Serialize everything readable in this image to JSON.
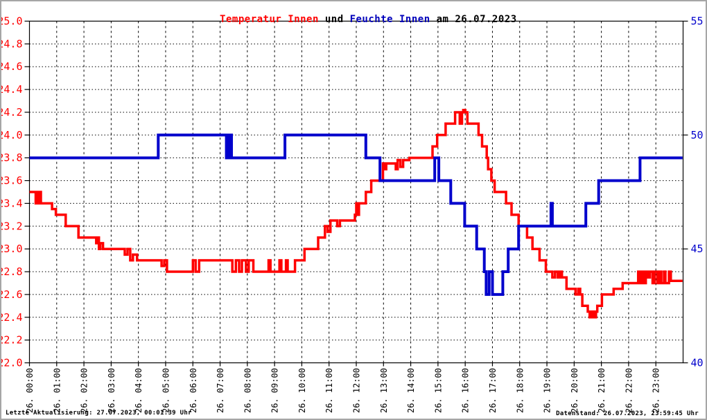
{
  "title": {
    "temperature": "Temperatur Innen",
    "conjunction": " und ",
    "humidity": "Feuchte Innen",
    "date_suffix": " am 26.07.2023"
  },
  "footer": {
    "left": "Letzte Aktualisierung: 27.07.2023, 00:01:39 Uhr",
    "right": "Datenstand: 26.07.2023, 23:59:45 Uhr"
  },
  "colors": {
    "temperature": "#ff0000",
    "humidity": "#0000cc",
    "grid": "#000000",
    "frame": "#a6a6a6"
  },
  "chart_data": {
    "type": "line",
    "title": "Temperatur Innen und Feuchte Innen am 26.07.2023",
    "date": "26.07.2023",
    "grid": true,
    "legend_position": "none",
    "x_axis": {
      "range_hours": [
        0,
        24
      ],
      "tick_labels": [
        "26. 00:00",
        "26. 01:00",
        "26. 02:00",
        "26. 03:00",
        "26. 04:00",
        "26. 05:00",
        "26. 06:00",
        "26. 07:00",
        "26. 08:00",
        "26. 09:00",
        "26. 10:00",
        "26. 11:00",
        "26. 12:00",
        "26. 13:00",
        "26. 14:00",
        "26. 15:00",
        "26. 16:00",
        "26. 17:00",
        "26. 18:00",
        "26. 19:00",
        "26. 20:00",
        "26. 21:00",
        "26. 22:00",
        "26. 23:00"
      ]
    },
    "y_left": {
      "name": "Temperatur Innen",
      "color": "#ff0000",
      "range": [
        22.0,
        25.0
      ],
      "tick_step": 0.2,
      "tick_labels": [
        "25.0",
        "24.8",
        "24.6",
        "24.4",
        "24.2",
        "24.0",
        "23.8",
        "23.6",
        "23.4",
        "23.2",
        "23.0",
        "22.8",
        "22.6",
        "22.4",
        "22.2",
        "22.0"
      ]
    },
    "y_right": {
      "name": "Feuchte Innen",
      "color": "#0000cc",
      "range": [
        40,
        55
      ],
      "tick_step": 5,
      "tick_labels": [
        "55",
        "50",
        "45",
        "40"
      ]
    },
    "series": [
      {
        "name": "Temperatur Innen",
        "axis": "left",
        "color": "#ff0000",
        "interpolation": "step-after",
        "points": [
          [
            0.0,
            23.5
          ],
          [
            0.23,
            23.4
          ],
          [
            0.27,
            23.5
          ],
          [
            0.32,
            23.4
          ],
          [
            0.36,
            23.5
          ],
          [
            0.42,
            23.4
          ],
          [
            0.83,
            23.35
          ],
          [
            0.97,
            23.3
          ],
          [
            1.33,
            23.2
          ],
          [
            1.8,
            23.1
          ],
          [
            2.45,
            23.05
          ],
          [
            2.5,
            23.1
          ],
          [
            2.55,
            23.0
          ],
          [
            2.6,
            23.05
          ],
          [
            2.7,
            23.0
          ],
          [
            3.5,
            22.95
          ],
          [
            3.6,
            23.0
          ],
          [
            3.7,
            22.9
          ],
          [
            3.8,
            22.95
          ],
          [
            3.95,
            22.9
          ],
          [
            4.85,
            22.85
          ],
          [
            4.95,
            22.9
          ],
          [
            5.05,
            22.8
          ],
          [
            6.0,
            22.9
          ],
          [
            6.1,
            22.8
          ],
          [
            6.23,
            22.9
          ],
          [
            7.45,
            22.8
          ],
          [
            7.58,
            22.9
          ],
          [
            7.7,
            22.8
          ],
          [
            7.8,
            22.9
          ],
          [
            7.95,
            22.8
          ],
          [
            8.05,
            22.9
          ],
          [
            8.22,
            22.8
          ],
          [
            8.78,
            22.9
          ],
          [
            8.85,
            22.8
          ],
          [
            9.18,
            22.9
          ],
          [
            9.25,
            22.8
          ],
          [
            9.42,
            22.9
          ],
          [
            9.48,
            22.8
          ],
          [
            9.75,
            22.9
          ],
          [
            10.1,
            23.0
          ],
          [
            10.6,
            23.1
          ],
          [
            10.85,
            23.2
          ],
          [
            10.95,
            23.15
          ],
          [
            11.05,
            23.25
          ],
          [
            11.3,
            23.2
          ],
          [
            11.4,
            23.25
          ],
          [
            11.95,
            23.3
          ],
          [
            12.0,
            23.4
          ],
          [
            12.05,
            23.3
          ],
          [
            12.1,
            23.4
          ],
          [
            12.35,
            23.5
          ],
          [
            12.55,
            23.6
          ],
          [
            12.98,
            23.75
          ],
          [
            13.05,
            23.7
          ],
          [
            13.1,
            23.75
          ],
          [
            13.45,
            23.7
          ],
          [
            13.52,
            23.78
          ],
          [
            13.62,
            23.72
          ],
          [
            13.72,
            23.78
          ],
          [
            13.95,
            23.8
          ],
          [
            14.8,
            23.9
          ],
          [
            14.97,
            24.0
          ],
          [
            15.28,
            24.1
          ],
          [
            15.63,
            24.2
          ],
          [
            15.8,
            24.1
          ],
          [
            15.88,
            24.2
          ],
          [
            15.93,
            24.22
          ],
          [
            16.0,
            24.2
          ],
          [
            16.08,
            24.1
          ],
          [
            16.49,
            24.0
          ],
          [
            16.62,
            23.9
          ],
          [
            16.79,
            23.8
          ],
          [
            16.84,
            23.7
          ],
          [
            16.96,
            23.6
          ],
          [
            17.08,
            23.5
          ],
          [
            17.5,
            23.4
          ],
          [
            17.7,
            23.3
          ],
          [
            17.96,
            23.2
          ],
          [
            18.27,
            23.1
          ],
          [
            18.47,
            23.0
          ],
          [
            18.73,
            22.9
          ],
          [
            18.96,
            22.8
          ],
          [
            19.2,
            22.75
          ],
          [
            19.3,
            22.8
          ],
          [
            19.4,
            22.75
          ],
          [
            19.47,
            22.8
          ],
          [
            19.55,
            22.75
          ],
          [
            19.72,
            22.65
          ],
          [
            20.05,
            22.6
          ],
          [
            20.15,
            22.65
          ],
          [
            20.22,
            22.6
          ],
          [
            20.3,
            22.5
          ],
          [
            20.5,
            22.45
          ],
          [
            20.57,
            22.4
          ],
          [
            20.65,
            22.45
          ],
          [
            20.72,
            22.4
          ],
          [
            20.8,
            22.45
          ],
          [
            20.85,
            22.5
          ],
          [
            21.02,
            22.6
          ],
          [
            21.45,
            22.65
          ],
          [
            21.78,
            22.7
          ],
          [
            22.35,
            22.8
          ],
          [
            22.42,
            22.7
          ],
          [
            22.5,
            22.8
          ],
          [
            22.58,
            22.7
          ],
          [
            22.63,
            22.8
          ],
          [
            22.72,
            22.75
          ],
          [
            22.78,
            22.8
          ],
          [
            22.88,
            22.7
          ],
          [
            22.95,
            22.8
          ],
          [
            23.05,
            22.7
          ],
          [
            23.12,
            22.8
          ],
          [
            23.2,
            22.7
          ],
          [
            23.3,
            22.8
          ],
          [
            23.35,
            22.7
          ],
          [
            23.48,
            22.8
          ],
          [
            23.55,
            22.72
          ],
          [
            23.98,
            22.72
          ]
        ]
      },
      {
        "name": "Feuchte Innen",
        "axis": "right",
        "color": "#0000cc",
        "interpolation": "step-after",
        "points": [
          [
            0.0,
            49
          ],
          [
            4.73,
            50
          ],
          [
            7.23,
            49
          ],
          [
            7.32,
            50
          ],
          [
            7.42,
            49
          ],
          [
            9.38,
            50
          ],
          [
            12.35,
            49
          ],
          [
            12.87,
            48
          ],
          [
            14.88,
            49
          ],
          [
            15.03,
            48
          ],
          [
            15.47,
            47
          ],
          [
            15.98,
            46
          ],
          [
            16.42,
            45
          ],
          [
            16.7,
            44
          ],
          [
            16.77,
            43
          ],
          [
            16.88,
            44
          ],
          [
            17.0,
            43
          ],
          [
            17.38,
            44
          ],
          [
            17.58,
            45
          ],
          [
            17.96,
            46
          ],
          [
            19.15,
            47
          ],
          [
            19.2,
            46
          ],
          [
            20.43,
            47
          ],
          [
            20.9,
            48
          ],
          [
            22.42,
            49
          ],
          [
            23.98,
            49
          ]
        ]
      }
    ]
  }
}
